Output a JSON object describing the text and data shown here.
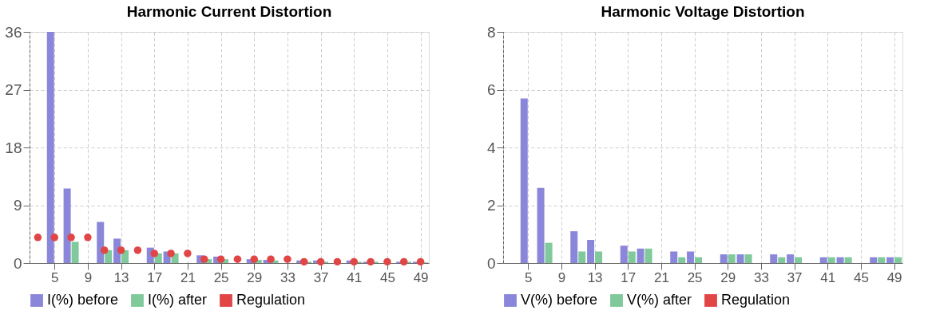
{
  "chart_data": [
    {
      "type": "bar",
      "title": "Harmonic Current Distortion",
      "x": [
        3,
        5,
        7,
        9,
        11,
        13,
        15,
        17,
        19,
        21,
        23,
        25,
        27,
        29,
        31,
        33,
        35,
        37,
        39,
        41,
        43,
        45,
        47,
        49
      ],
      "xlim": [
        2,
        50
      ],
      "xticks": [
        5,
        9,
        13,
        17,
        21,
        25,
        29,
        33,
        37,
        41,
        45,
        49
      ],
      "ylim": [
        0,
        36
      ],
      "yticks": [
        0,
        9,
        18,
        27,
        36
      ],
      "grid": true,
      "legend": "bottom",
      "series": [
        {
          "name": "I(%) before",
          "color": "#8a86d9",
          "values": [
            null,
            36,
            11.6,
            null,
            6.4,
            3.8,
            null,
            2.4,
            1.8,
            null,
            1.2,
            1.0,
            null,
            0.6,
            0.5,
            null,
            0.4,
            0.4,
            null,
            0.4,
            0.2,
            null,
            0.2,
            0.2
          ]
        },
        {
          "name": "I(%) after",
          "color": "#80c99b",
          "values": [
            null,
            null,
            3.3,
            null,
            2.0,
            2.0,
            null,
            1.5,
            1.5,
            null,
            0.6,
            0.6,
            null,
            0.5,
            0.4,
            null,
            0.2,
            0.2,
            null,
            0.2,
            0.2,
            null,
            0.2,
            0.1
          ]
        },
        {
          "name": "Regulation",
          "type": "scatter",
          "marker": "circle",
          "color": "#e24545",
          "values": [
            4,
            4,
            4,
            4,
            2,
            2,
            2,
            1.5,
            1.5,
            1.5,
            0.6,
            0.6,
            0.6,
            0.6,
            0.6,
            0.6,
            0.2,
            0.2,
            0.2,
            0.2,
            0.2,
            0.2,
            0.2,
            0.2
          ]
        }
      ]
    },
    {
      "type": "bar",
      "title": "Harmonic Voltage Distortion",
      "x": [
        5,
        7,
        9,
        11,
        13,
        15,
        17,
        19,
        21,
        23,
        25,
        27,
        29,
        31,
        33,
        35,
        37,
        39,
        41,
        43,
        45,
        47,
        49
      ],
      "xlim": [
        2,
        50
      ],
      "xticks": [
        5,
        9,
        13,
        17,
        21,
        25,
        29,
        33,
        37,
        41,
        45,
        49
      ],
      "ylim": [
        0,
        8
      ],
      "yticks": [
        0,
        2,
        4,
        6,
        8
      ],
      "grid": true,
      "legend": "bottom",
      "series": [
        {
          "name": "V(%) before",
          "color": "#8a86d9",
          "values": [
            5.7,
            2.6,
            null,
            1.1,
            0.8,
            null,
            0.6,
            0.5,
            null,
            0.4,
            0.4,
            null,
            0.3,
            0.3,
            null,
            0.3,
            0.3,
            null,
            0.2,
            0.2,
            null,
            0.2,
            0.2
          ]
        },
        {
          "name": "V(%) after",
          "color": "#80c99b",
          "values": [
            null,
            0.7,
            null,
            0.4,
            0.4,
            null,
            0.4,
            0.5,
            null,
            0.2,
            0.2,
            null,
            0.3,
            0.3,
            null,
            0.2,
            0.2,
            null,
            0.2,
            0.2,
            null,
            0.2,
            0.2
          ]
        },
        {
          "name": "Regulation",
          "type": "scatter",
          "marker": "circle",
          "color": "#e24545",
          "values": [
            null,
            null,
            null,
            null,
            null,
            null,
            null,
            null,
            null,
            null,
            null,
            null,
            null,
            null,
            null,
            null,
            null,
            null,
            null,
            null,
            null,
            null,
            null
          ]
        }
      ]
    }
  ]
}
